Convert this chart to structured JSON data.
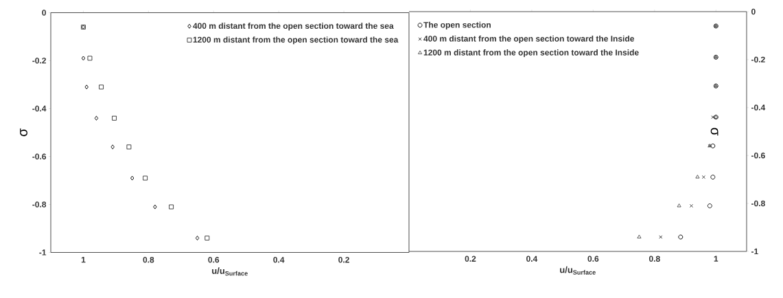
{
  "chart_data": [
    {
      "type": "scatter",
      "xlabel": "u/u$_{Surface}$",
      "ylabel": "σ",
      "xlim": [
        1.1,
        0
      ],
      "ylim": [
        -1,
        0
      ],
      "xticks": [
        1,
        0.8,
        0.6,
        0.4,
        0.2
      ],
      "yticks": [
        -1,
        -0.8,
        -0.6,
        -0.4,
        -0.2,
        0
      ],
      "grid": false,
      "legend": "top right",
      "series": [
        {
          "name": "400 m distant from the open section toward the sea",
          "color": "#000000",
          "marker": "diamond",
          "x": [
            1.0,
            1.0,
            0.99,
            0.96,
            0.91,
            0.85,
            0.78,
            0.65
          ],
          "values": [
            -0.06,
            -0.19,
            -0.31,
            -0.44,
            -0.56,
            -0.69,
            -0.81,
            -0.94
          ]
        },
        {
          "name": "1200 m distant from the open section toward the sea",
          "color": "#333333",
          "marker": "square",
          "x": [
            1.0,
            0.98,
            0.945,
            0.905,
            0.86,
            0.81,
            0.73,
            0.62
          ],
          "values": [
            -0.06,
            -0.19,
            -0.31,
            -0.44,
            -0.56,
            -0.69,
            -0.81,
            -0.94
          ]
        }
      ]
    },
    {
      "type": "scatter",
      "xlabel": "u/u$_{Surface}$",
      "ylabel": "σ",
      "xlim": [
        0,
        1.1
      ],
      "ylim": [
        -1,
        0
      ],
      "xticks": [
        0.2,
        0.4,
        0.6,
        0.8,
        1
      ],
      "yticks": [
        -1,
        -0.8,
        -0.6,
        -0.4,
        -0.2,
        0
      ],
      "grid": false,
      "legend": "top left",
      "series": [
        {
          "name": "The open section",
          "color": "#000000",
          "marker": "circle",
          "x": [
            1.0,
            1.0,
            1.0,
            1.0,
            0.99,
            0.99,
            0.98,
            0.885
          ],
          "values": [
            -0.06,
            -0.19,
            -0.31,
            -0.44,
            -0.56,
            -0.69,
            -0.81,
            -0.94
          ]
        },
        {
          "name": "400 m distant from the open section toward the Inside",
          "color": "#262626",
          "marker": "cross",
          "x": [
            1.0,
            1.0,
            1.0,
            0.99,
            0.98,
            0.96,
            0.92,
            0.82
          ],
          "values": [
            -0.06,
            -0.19,
            -0.31,
            -0.44,
            -0.56,
            -0.69,
            -0.81,
            -0.94
          ]
        },
        {
          "name": "1200 m distant from the open section toward the Inside",
          "color": "#4d4d4d",
          "marker": "triangle",
          "x": [
            1.0,
            1.0,
            1.0,
            1.0,
            0.98,
            0.94,
            0.88,
            0.75
          ],
          "values": [
            -0.06,
            -0.19,
            -0.31,
            -0.44,
            -0.56,
            -0.69,
            -0.81,
            -0.94
          ]
        }
      ]
    }
  ]
}
